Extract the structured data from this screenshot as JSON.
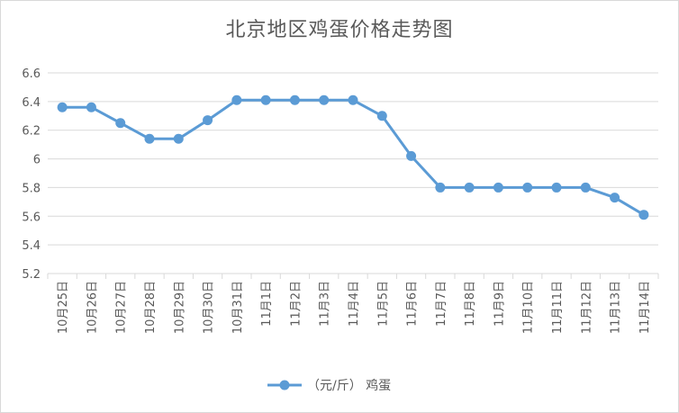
{
  "chart_data": {
    "type": "line",
    "title": "北京地区鸡蛋价格走势图",
    "categories": [
      "10月25日",
      "10月26日",
      "10月27日",
      "10月28日",
      "10月29日",
      "10月30日",
      "10月31日",
      "11月1日",
      "11月2日",
      "11月3日",
      "11月4日",
      "11月5日",
      "11月6日",
      "11月7日",
      "11月8日",
      "11月9日",
      "11月10日",
      "11月11日",
      "11月12日",
      "11月13日",
      "11月14日"
    ],
    "series": [
      {
        "name": "（元/斤） 鸡蛋",
        "values": [
          6.36,
          6.36,
          6.25,
          6.14,
          6.14,
          6.27,
          6.41,
          6.41,
          6.41,
          6.41,
          6.41,
          6.3,
          6.02,
          5.8,
          5.8,
          5.8,
          5.8,
          5.8,
          5.8,
          5.73,
          5.61
        ],
        "color": "#5b9bd5"
      }
    ],
    "ylim": [
      5.2,
      6.6
    ],
    "yticks": [
      "5.2",
      "5.4",
      "5.6",
      "5.8",
      "6",
      "6.2",
      "6.4",
      "6.6"
    ],
    "grid": true,
    "legend": "bottom"
  }
}
